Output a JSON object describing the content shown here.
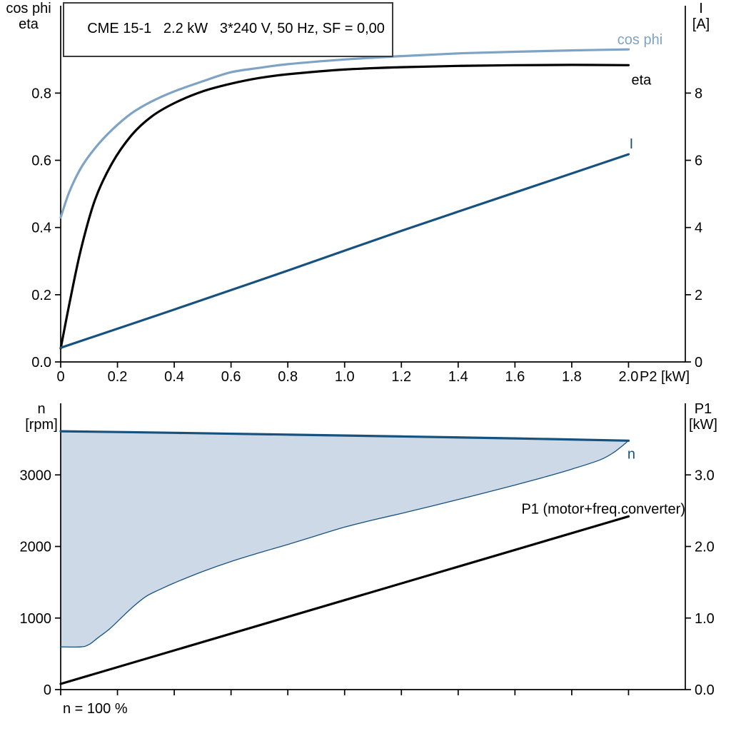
{
  "colors": {
    "cos_phi": "#7fa3c4",
    "dark_blue": "#17527f",
    "black": "#000000",
    "area_fill": "#cdd9e6",
    "axis": "#000000",
    "background": "#ffffff"
  },
  "title_box": {
    "text": "CME 15-1   2.2 kW   3*240 V, 50 Hz, SF = 0,00"
  },
  "footnote": {
    "text": "n = 100 %"
  },
  "chart_data": [
    {
      "id": "motor-curves",
      "type": "line",
      "title": "CME 15-1   2.2 kW   3*240 V, 50 Hz, SF = 0,00",
      "x_axis": {
        "label": "P2 [kW]",
        "range": [
          0,
          2.2
        ],
        "ticks": [
          0,
          0.2,
          0.4,
          0.6,
          0.8,
          1.0,
          1.2,
          1.4,
          1.6,
          1.8,
          2.0
        ],
        "tick_labels": [
          "0",
          "0.2",
          "0.4",
          "0.6",
          "0.8",
          "1.0",
          "1.2",
          "1.4",
          "1.6",
          "1.8",
          "2.0"
        ]
      },
      "left_axis": {
        "label_lines": [
          "cos phi",
          "eta"
        ],
        "range": [
          0,
          1.06
        ],
        "ticks": [
          0,
          0.2,
          0.4,
          0.6,
          0.8
        ],
        "tick_labels": [
          "0.0",
          "0.2",
          "0.4",
          "0.6",
          "0.8"
        ]
      },
      "right_axis": {
        "label_lines": [
          "I",
          "[A]"
        ],
        "range": [
          0,
          10.6
        ],
        "ticks": [
          0,
          2,
          4,
          6,
          8
        ],
        "tick_labels": [
          "0",
          "2",
          "4",
          "6",
          "8"
        ]
      },
      "series": [
        {
          "name": "cos phi",
          "axis": "left",
          "color": "cos_phi",
          "width": 3.2,
          "x": [
            0,
            0.03,
            0.07,
            0.12,
            0.18,
            0.25,
            0.32,
            0.4,
            0.5,
            0.6,
            0.7,
            0.8,
            1.0,
            1.2,
            1.4,
            1.6,
            1.8,
            2.0
          ],
          "y": [
            0.43,
            0.505,
            0.575,
            0.635,
            0.69,
            0.74,
            0.775,
            0.805,
            0.835,
            0.862,
            0.875,
            0.886,
            0.9,
            0.91,
            0.918,
            0.923,
            0.927,
            0.93
          ]
        },
        {
          "name": "eta",
          "axis": "left",
          "color": "black",
          "width": 3.2,
          "x": [
            0,
            0.03,
            0.07,
            0.12,
            0.18,
            0.25,
            0.32,
            0.4,
            0.5,
            0.6,
            0.7,
            0.8,
            1.0,
            1.2,
            1.4,
            1.6,
            1.8,
            2.0
          ],
          "y": [
            0.04,
            0.17,
            0.33,
            0.48,
            0.59,
            0.675,
            0.73,
            0.77,
            0.805,
            0.828,
            0.845,
            0.856,
            0.87,
            0.877,
            0.881,
            0.883,
            0.884,
            0.883
          ]
        },
        {
          "name": "I",
          "axis": "right",
          "color": "dark_blue",
          "width": 3.2,
          "x": [
            0,
            0.4,
            0.8,
            1.2,
            1.6,
            2.0
          ],
          "y": [
            0.42,
            1.56,
            2.72,
            3.9,
            5.04,
            6.18
          ]
        }
      ],
      "annotations": [
        {
          "text": "cos phi",
          "color": "cos_phi",
          "axis": "left",
          "x": 2.12,
          "y": 0.945,
          "anchor": "end"
        },
        {
          "text": "eta",
          "color": "black",
          "axis": "left",
          "x": 2.08,
          "y": 0.825,
          "anchor": "end"
        },
        {
          "text": "I",
          "color": "dark_blue",
          "axis": "right",
          "x": 2.01,
          "y": 6.35,
          "anchor": "middle"
        }
      ]
    },
    {
      "id": "speed-power",
      "type": "line+area",
      "x_axis": {
        "label": "",
        "range": [
          0,
          2.2
        ],
        "ticks": [
          0,
          0.2,
          0.4,
          0.6,
          0.8,
          1.0,
          1.2,
          1.4,
          1.6,
          1.8,
          2.0
        ]
      },
      "left_axis": {
        "label_lines": [
          "n",
          "[rpm]"
        ],
        "range": [
          0,
          4000
        ],
        "ticks": [
          0,
          1000,
          2000,
          3000
        ],
        "tick_labels": [
          "0",
          "1000",
          "2000",
          "3000"
        ]
      },
      "right_axis": {
        "label_lines": [
          "P1",
          "[kW]"
        ],
        "range": [
          0,
          4
        ],
        "ticks": [
          0,
          1,
          2,
          3
        ],
        "tick_labels": [
          "0.0",
          "1.0",
          "2.0",
          "3.0"
        ]
      },
      "area": {
        "name": "speed-control-range-area",
        "upper": "n",
        "lower": "n min",
        "fill": "area_fill"
      },
      "series": [
        {
          "name": "n min",
          "axis": "left",
          "color": "dark_blue",
          "width": 1.3,
          "x": [
            0,
            0.07,
            0.1,
            0.13,
            0.17,
            0.21,
            0.25,
            0.3,
            0.35,
            0.4,
            0.5,
            0.6,
            0.7,
            0.8,
            0.9,
            1.0,
            1.1,
            1.2,
            1.3,
            1.4,
            1.5,
            1.6,
            1.7,
            1.8,
            1.9,
            1.95,
            2.0
          ],
          "y": [
            597,
            597,
            630,
            720,
            840,
            990,
            1140,
            1300,
            1400,
            1490,
            1650,
            1790,
            1912,
            2028,
            2150,
            2270,
            2370,
            2462,
            2558,
            2655,
            2755,
            2858,
            2965,
            3080,
            3210,
            3320,
            3478
          ]
        },
        {
          "name": "n",
          "axis": "left",
          "color": "dark_blue",
          "width": 3.2,
          "x": [
            0,
            0.4,
            0.8,
            1.2,
            1.6,
            2.0
          ],
          "y": [
            3610,
            3588,
            3563,
            3537,
            3510,
            3478
          ]
        },
        {
          "name": "P1 (motor+freq.converter)",
          "axis": "right",
          "color": "black",
          "width": 3.2,
          "x": [
            0,
            2.0
          ],
          "y": [
            0.08,
            2.42
          ]
        }
      ],
      "annotations": [
        {
          "text": "n",
          "color": "dark_blue",
          "axis": "left",
          "x": 2.01,
          "y": 3225,
          "anchor": "middle"
        },
        {
          "text": "P1 (motor+freq.converter)",
          "color": "black",
          "axis": "right",
          "x": 2.2,
          "y": 2.46,
          "anchor": "end"
        }
      ]
    }
  ]
}
